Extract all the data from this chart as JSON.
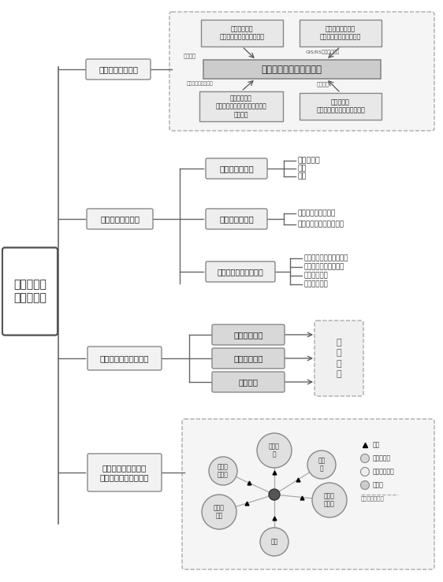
{
  "bg_color": "#ffffff",
  "main_label": "海岛雨洪高\n效利用系统",
  "s1_label": "海岛雨洪资源评估",
  "s2_label": "海岛雨洪径流迟滞",
  "s3_label": "海岛雨洪资源存储系统",
  "s4_label": "基于分质利用的全岛\n雨洪资源调度利用系统",
  "city_label": "城市区雨洪迟带",
  "rural_label": "乡村区雨洪迟带",
  "hill_label": "丘陵区小流域雨洪迟带",
  "city_items": [
    "道路、广场",
    "屋顶",
    "绿地"
  ],
  "rural_items": [
    "乡村区绿色屋顶改造",
    "乡村区水井坑塘蓄滞利用"
  ],
  "hill_items": [
    "丘陵区小流域封禁、补植",
    "坡改梯和坡面滞洪拦板",
    "广域滞洪低坝",
    "翻水转移滞蓄"
  ],
  "storage_items": [
    "地表系列水库",
    "地下储水空间",
    "蓄淡水库"
  ],
  "s1_top_left": "基础水文数据\n（气温、降水、蒸散发等）",
  "s1_top_right": "基础地理信息数据\n（土地利用、土壤类型）",
  "s1_center": "分布式水文模型计算模块",
  "s1_bot_left": "人工降雨实验\n（不同土地利用类型、土壤类型\n和坡度）",
  "s1_bot_right": "率定和校准\n（大中型水库、验证小流域）",
  "s1_arrow_labels": [
    "雨量分析",
    "GIS/RS数字流域分析",
    "分时降雨产汇流机制",
    "验证率定"
  ],
  "互联互通": "互\n联\n互\n通",
  "net_nodes": [
    "蓄淡水\n库",
    "小水\n库",
    "地下储\n水空间",
    "水厂",
    "大中型\n水库",
    "雨水收\n集系统"
  ],
  "legend_items": [
    "泵站",
    "大储水空间",
    "小型储水空间",
    "用水户"
  ],
  "legend_last": "河、渠、管、涵"
}
